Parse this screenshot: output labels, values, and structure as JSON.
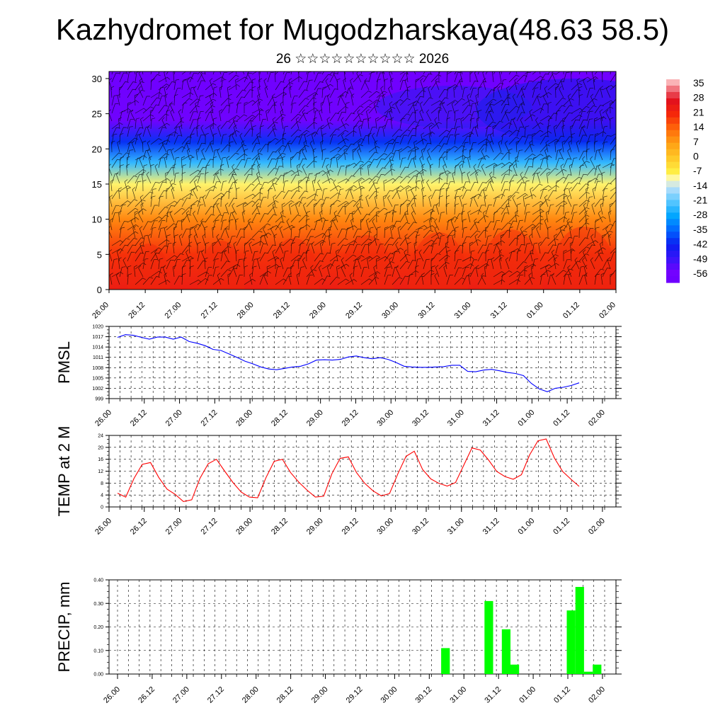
{
  "title": "Kazhydromet for Mugodzharskaya(48.63 58.5)",
  "subtitle": "26 ☆☆☆☆☆☆☆☆☆☆ 2026",
  "time_labels": [
    "26.00",
    "26.12",
    "27.00",
    "27.12",
    "28.00",
    "28.12",
    "29.00",
    "29.12",
    "30.00",
    "30.12",
    "31.00",
    "31.12",
    "01.00",
    "01.12",
    "02.00"
  ],
  "colors": {
    "pmsl_line": "#0000ff",
    "temp_line": "#ff0000",
    "precip_bar": "#00ff00"
  },
  "chart_data": [
    {
      "type": "heatmap",
      "name": "vertical temperature and wind cross-section",
      "x_labels": [
        "26.00",
        "26.12",
        "27.00",
        "27.12",
        "28.00",
        "28.12",
        "29.00",
        "29.12",
        "30.00",
        "30.12",
        "31.00",
        "31.12",
        "01.00",
        "01.12",
        "02.00"
      ],
      "yticks": [
        0,
        5,
        10,
        15,
        20,
        25,
        30
      ],
      "ylim": [
        0,
        31
      ],
      "colorbar_labels": [
        "35",
        "28",
        "21",
        "14",
        "7",
        "0",
        "-7",
        "-14",
        "-21",
        "-28",
        "-35",
        "-42",
        "-49",
        "-56"
      ],
      "colorbar_range": [
        -60,
        38
      ],
      "level_temperature_profile": [
        {
          "level": 0,
          "temp": 24
        },
        {
          "level": 5,
          "temp": 20
        },
        {
          "level": 10,
          "temp": 10
        },
        {
          "level": 15,
          "temp": -8
        },
        {
          "level": 18,
          "temp": -24
        },
        {
          "level": 21,
          "temp": -40
        },
        {
          "level": 24,
          "temp": -55
        },
        {
          "level": 31,
          "temp": -58
        }
      ]
    },
    {
      "type": "line",
      "ylabel": "PMSL",
      "ylim": [
        999,
        1020
      ],
      "yticks": [
        "999",
        "1002",
        "1005",
        "1008",
        "1011",
        "1014",
        "1017",
        "1020"
      ],
      "xlim": [
        0,
        45
      ],
      "x_labels": [
        "26.00",
        "26.12",
        "27.00",
        "27.12",
        "28.00",
        "28.12",
        "29.00",
        "29.12",
        "30.00",
        "30.12",
        "31.00",
        "31.12",
        "01.00",
        "01.12",
        "02.00"
      ],
      "series": [
        {
          "name": "PMSL",
          "values": [
            1016.8,
            1017.6,
            1017.4,
            1016.8,
            1016.3,
            1016.9,
            1016.9,
            1016.3,
            1016.9,
            1015.6,
            1015.1,
            1014.4,
            1013.3,
            1013.0,
            1012.0,
            1011.0,
            1009.9,
            1009.1,
            1008.2,
            1007.6,
            1007.4,
            1007.8,
            1008.2,
            1008.4,
            1009.1,
            1010.2,
            1010.3,
            1010.2,
            1010.4,
            1011.1,
            1011.4,
            1010.9,
            1010.6,
            1010.9,
            1010.4,
            1009.5,
            1008.4,
            1008.2,
            1008.1,
            1008.1,
            1008.2,
            1008.3,
            1008.7,
            1008.7,
            1006.9,
            1006.8,
            1007.3,
            1007.5,
            1007.1,
            1006.6,
            1006.3,
            1005.7,
            1003.4,
            1001.8,
            1001.0,
            1002.0,
            1002.3,
            1002.8,
            1003.6
          ]
        }
      ]
    },
    {
      "type": "line",
      "ylabel": "TEMP at 2 M",
      "ylim": [
        0,
        24
      ],
      "yticks": [
        "0",
        "4",
        "8",
        "12",
        "16",
        "20",
        "24"
      ],
      "xlim": [
        0,
        45
      ],
      "x_labels": [
        "26.00",
        "26.12",
        "27.00",
        "27.12",
        "28.00",
        "28.12",
        "29.00",
        "29.12",
        "30.00",
        "30.12",
        "31.00",
        "31.12",
        "01.00",
        "01.12",
        "02.00"
      ],
      "series": [
        {
          "name": "TEMP at 2 M",
          "values": [
            4.6,
            3.3,
            9.6,
            14.3,
            14.9,
            9.9,
            6.0,
            4.2,
            1.8,
            2.4,
            9.6,
            14.5,
            16.0,
            12.0,
            8.2,
            5.0,
            3.3,
            3.1,
            9.8,
            15.3,
            16.0,
            11.5,
            8.3,
            5.6,
            3.3,
            3.6,
            11.1,
            16.3,
            16.8,
            11.5,
            7.9,
            5.4,
            3.7,
            4.5,
            11.1,
            17.0,
            18.7,
            12.6,
            9.4,
            7.9,
            7.0,
            8.2,
            14.0,
            19.8,
            19.1,
            15.8,
            11.9,
            10.2,
            9.3,
            10.8,
            17.5,
            22.2,
            22.8,
            16.4,
            11.9,
            9.3,
            6.9
          ]
        }
      ]
    },
    {
      "type": "bar",
      "ylabel": "PRECIP, mm",
      "ylim": [
        0,
        0.4
      ],
      "yticks": [
        "0.00",
        "0.10",
        "0.20",
        "0.30",
        "0.40"
      ],
      "xlim": [
        0,
        45
      ],
      "x_labels": [
        "26.00",
        "26.12",
        "27.00",
        "27.12",
        "28.00",
        "28.12",
        "29.00",
        "29.12",
        "30.00",
        "30.12",
        "31.00",
        "31.12",
        "01.00",
        "01.12",
        "02.00"
      ],
      "bars": [
        {
          "t": 30.3,
          "value": 0.11
        },
        {
          "t": 34.3,
          "value": 0.31
        },
        {
          "t": 35.9,
          "value": 0.19
        },
        {
          "t": 36.7,
          "value": 0.04
        },
        {
          "t": 41.9,
          "value": 0.27
        },
        {
          "t": 42.7,
          "value": 0.37
        },
        {
          "t": 43.5,
          "value": 0.01
        },
        {
          "t": 44.3,
          "value": 0.04
        }
      ]
    }
  ]
}
